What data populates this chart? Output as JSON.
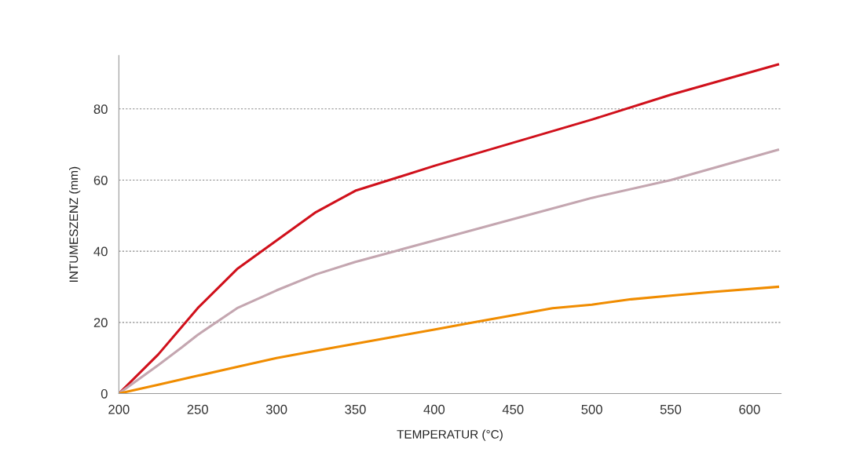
{
  "chart_data": {
    "type": "line",
    "xlabel": "TEMPERATUR (°C)",
    "ylabel": "INTUMESZENZ (mm)",
    "xlim": [
      200,
      620
    ],
    "ylim": [
      0,
      95
    ],
    "xticks": [
      200,
      250,
      300,
      350,
      400,
      450,
      500,
      550,
      600
    ],
    "yticks": [
      0,
      20,
      40,
      60,
      80
    ],
    "grid": "y",
    "legend": false,
    "marker": "none",
    "line_style": "solid",
    "series": [
      {
        "color": "#d0101b",
        "x": [
          200,
          225,
          250,
          275,
          300,
          325,
          350,
          375,
          400,
          450,
          500,
          550,
          618
        ],
        "values": [
          0,
          11,
          24,
          35,
          43,
          51,
          57,
          60.5,
          64,
          70.5,
          77,
          84,
          92.5
        ]
      },
      {
        "color": "#c4a6b0",
        "x": [
          200,
          225,
          240,
          250,
          275,
          300,
          325,
          350,
          375,
          400,
          450,
          500,
          550,
          618
        ],
        "values": [
          0,
          8,
          13,
          16.5,
          24,
          29,
          33.5,
          37,
          40,
          43,
          49,
          55,
          60,
          68.5
        ]
      },
      {
        "color": "#f08c00",
        "x": [
          200,
          225,
          250,
          275,
          300,
          325,
          350,
          375,
          400,
          425,
          450,
          475,
          500,
          525,
          550,
          575,
          618
        ],
        "values": [
          0,
          2.5,
          5,
          7.5,
          10,
          12,
          14,
          16,
          18,
          20,
          22,
          24,
          25,
          26.5,
          27.5,
          28.5,
          30
        ]
      }
    ]
  }
}
